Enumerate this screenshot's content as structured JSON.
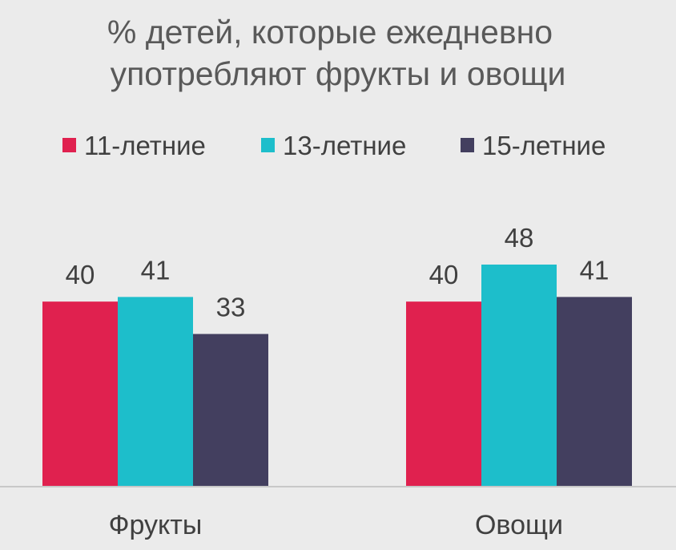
{
  "chart_data": {
    "type": "bar",
    "title_lines": [
      "% детей, которые ежедневно",
      "употребляют фрукты и овощи"
    ],
    "categories": [
      "Фрукты",
      "Овощи"
    ],
    "series": [
      {
        "name": "11-летние",
        "values": [
          40,
          40
        ],
        "color": "#e0214f"
      },
      {
        "name": "13-летние",
        "values": [
          41,
          48
        ],
        "color": "#1dbecb"
      },
      {
        "name": "15-летние",
        "values": [
          33,
          41
        ],
        "color": "#433f5f"
      }
    ],
    "ylim": [
      0,
      48
    ],
    "grid": false,
    "legend_position": "top",
    "background_color": "#ebebeb",
    "axis_color": "#c8c8c8"
  }
}
